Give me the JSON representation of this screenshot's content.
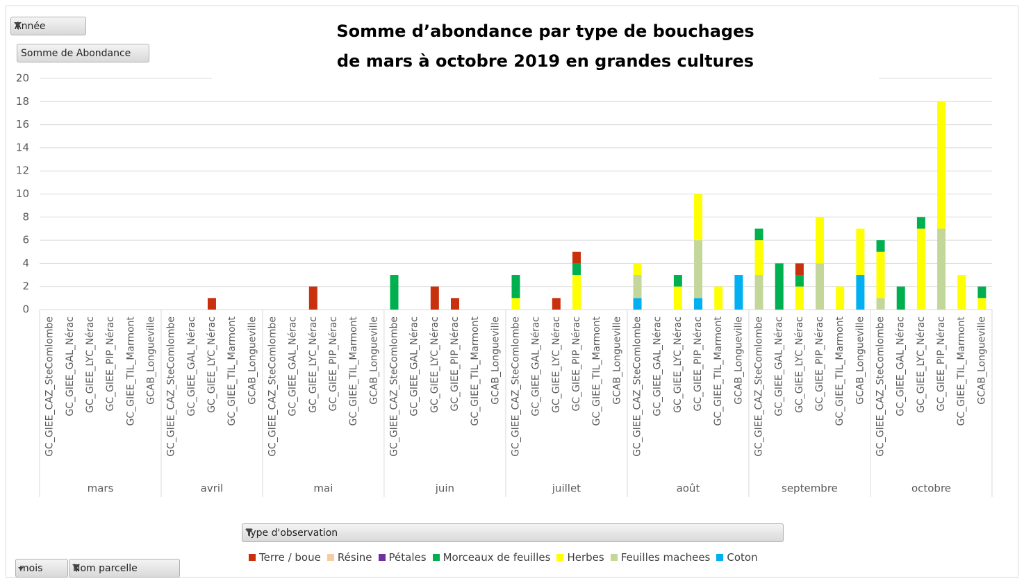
{
  "chart_data": {
    "type": "bar",
    "stacked": true,
    "title": "Somme d’abondance par type de bouchages",
    "subtitle": "de mars à octobre 2019 en grandes cultures",
    "groups": [
      {
        "name": "mars",
        "categories": [
          "GC_GIEE_CAZ_SteComlombe",
          "GC_GIEE_GAL_Nérac",
          "GC_GIEE_LYC_Nérac",
          "GC_GIEE_PIP_Nérac",
          "GC_GIEE_TIL_Marmont",
          "GCAB_Longueville"
        ]
      },
      {
        "name": "avril",
        "categories": [
          "GC_GIEE_CAZ_SteComlombe",
          "GC_GIEE_GAL_Nérac",
          "GC_GIEE_LYC_Nérac",
          "GC_GIEE_TIL_Marmont",
          "GCAB_Longueville"
        ]
      },
      {
        "name": "mai",
        "categories": [
          "GC_GIEE_CAZ_SteComlombe",
          "GC_GIEE_GAL_Nérac",
          "GC_GIEE_LYC_Nérac",
          "GC_GIEE_PIP_Nérac",
          "GC_GIEE_TIL_Marmont",
          "GCAB_Longueville"
        ]
      },
      {
        "name": "juin",
        "categories": [
          "GC_GIEE_CAZ_SteComlombe",
          "GC_GIEE_GAL_Nérac",
          "GC_GIEE_LYC_Nérac",
          "GC_GIEE_PIP_Nérac",
          "GC_GIEE_TIL_Marmont",
          "GCAB_Longueville"
        ]
      },
      {
        "name": "juillet",
        "categories": [
          "GC_GIEE_CAZ_SteComlombe",
          "GC_GIEE_GAL_Nérac",
          "GC_GIEE_LYC_Nérac",
          "GC_GIEE_PIP_Nérac",
          "GC_GIEE_TIL_Marmont",
          "GCAB_Longueville"
        ]
      },
      {
        "name": "août",
        "categories": [
          "GC_GIEE_CAZ_SteComlombe",
          "GC_GIEE_GAL_Nérac",
          "GC_GIEE_LYC_Nérac",
          "GC_GIEE_PIP_Nérac",
          "GC_GIEE_TIL_Marmont",
          "GCAB_Longueville"
        ]
      },
      {
        "name": "septembre",
        "categories": [
          "GC_GIEE_CAZ_SteComlombe",
          "GC_GIEE_GAL_Nérac",
          "GC_GIEE_LYC_Nérac",
          "GC_GIEE_PIP_Nérac",
          "GC_GIEE_TIL_Marmont",
          "GCAB_Longueville"
        ]
      },
      {
        "name": "octobre",
        "categories": [
          "GC_GIEE_CAZ_SteComlombe",
          "GC_GIEE_GAL_Nérac",
          "GC_GIEE_LYC_Nérac",
          "GC_GIEE_PIP_Nérac",
          "GC_GIEE_TIL_Marmont",
          "GCAB_Longueville"
        ]
      }
    ],
    "series": [
      {
        "name": "Terre / boue",
        "color": "#c9300e",
        "values": [
          null,
          null,
          null,
          null,
          null,
          null,
          null,
          null,
          1,
          null,
          null,
          null,
          null,
          2,
          null,
          null,
          null,
          null,
          null,
          2,
          1,
          null,
          null,
          null,
          null,
          1,
          1,
          null,
          null,
          null,
          null,
          null,
          null,
          null,
          null,
          null,
          null,
          1,
          null,
          null,
          null,
          null,
          null,
          null,
          null,
          null,
          null
        ]
      },
      {
        "name": "Résine",
        "color": "#f8cba0",
        "values": [
          null,
          null,
          null,
          null,
          null,
          null,
          null,
          null,
          null,
          null,
          null,
          null,
          null,
          null,
          null,
          null,
          null,
          null,
          null,
          null,
          null,
          null,
          null,
          null,
          null,
          null,
          null,
          null,
          null,
          null,
          null,
          null,
          null,
          null,
          null,
          null,
          null,
          null,
          null,
          null,
          null,
          null,
          null,
          null,
          null,
          null,
          null
        ]
      },
      {
        "name": "Pétales",
        "color": "#7030a0",
        "values": [
          null,
          null,
          null,
          null,
          null,
          null,
          null,
          null,
          null,
          null,
          null,
          null,
          null,
          null,
          null,
          null,
          null,
          null,
          null,
          null,
          null,
          null,
          null,
          null,
          null,
          null,
          null,
          null,
          null,
          null,
          null,
          null,
          null,
          null,
          null,
          null,
          null,
          null,
          null,
          null,
          null,
          null,
          null,
          null,
          null,
          null,
          null
        ]
      },
      {
        "name": "Morceaux de feuilles",
        "color": "#00b050",
        "values": [
          null,
          null,
          null,
          null,
          null,
          null,
          null,
          null,
          null,
          null,
          null,
          null,
          null,
          null,
          null,
          null,
          null,
          3,
          null,
          null,
          null,
          null,
          null,
          2,
          null,
          null,
          1,
          null,
          null,
          null,
          null,
          1,
          null,
          null,
          null,
          1,
          4,
          1,
          null,
          null,
          null,
          1,
          2,
          1,
          null,
          null,
          1
        ]
      },
      {
        "name": "Herbes",
        "color": "#ffff00",
        "values": [
          null,
          null,
          null,
          null,
          null,
          null,
          null,
          null,
          null,
          null,
          null,
          null,
          null,
          null,
          null,
          null,
          null,
          null,
          null,
          null,
          null,
          null,
          null,
          1,
          null,
          null,
          3,
          null,
          null,
          1,
          null,
          2,
          4,
          2,
          null,
          3,
          null,
          2,
          4,
          2,
          4,
          4,
          null,
          7,
          11,
          3,
          1
        ]
      },
      {
        "name": "Feuilles machees",
        "color": "#c4d79b",
        "values": [
          null,
          null,
          null,
          null,
          null,
          null,
          null,
          null,
          null,
          null,
          null,
          null,
          null,
          null,
          null,
          null,
          null,
          null,
          null,
          null,
          null,
          null,
          null,
          null,
          null,
          null,
          null,
          null,
          null,
          2,
          null,
          null,
          5,
          null,
          null,
          3,
          null,
          null,
          4,
          null,
          null,
          1,
          null,
          null,
          7,
          null,
          null
        ]
      },
      {
        "name": "Coton",
        "color": "#00b0f0",
        "values": [
          null,
          null,
          null,
          null,
          null,
          null,
          null,
          null,
          null,
          null,
          null,
          null,
          null,
          null,
          null,
          null,
          null,
          null,
          null,
          null,
          null,
          null,
          null,
          null,
          null,
          null,
          null,
          null,
          null,
          1,
          null,
          null,
          1,
          null,
          3,
          null,
          null,
          null,
          null,
          null,
          3,
          null,
          null,
          null,
          null,
          null,
          null
        ]
      }
    ],
    "ylim": [
      0,
      20
    ],
    "yticks": [
      0,
      2,
      4,
      6,
      8,
      10,
      12,
      14,
      16,
      18,
      20
    ],
    "grid": true
  },
  "fields": {
    "year": "Année",
    "value": "Somme de Abondance",
    "legend": "Type d'observation",
    "axis1": "mois",
    "axis2": "Nom parcelle"
  }
}
